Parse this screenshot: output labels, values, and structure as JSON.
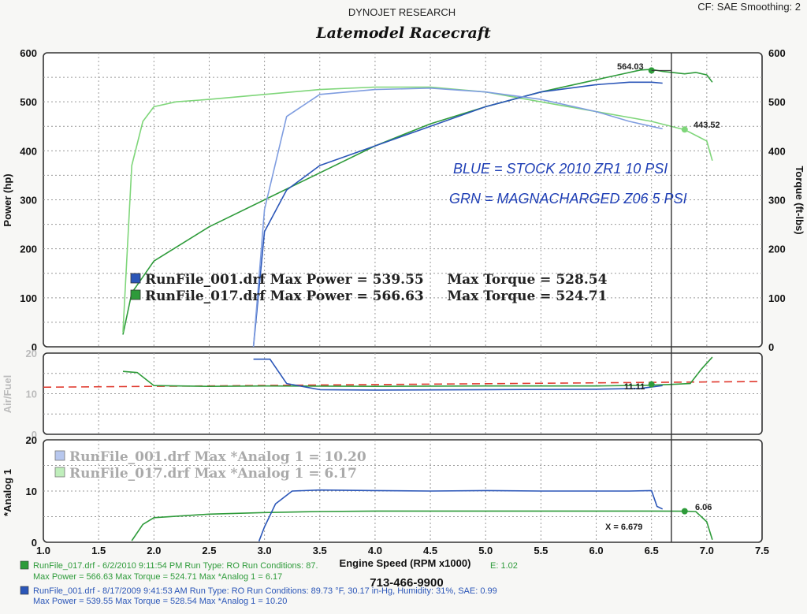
{
  "header": {
    "company": "DYNOJET RESEARCH",
    "shop": "Latemodel Racecraft",
    "settings": "CF: SAE  Smoothing: 2"
  },
  "colors": {
    "run_001": "#2b56b8",
    "run_017": "#2e9b3a",
    "run_017_light": "#7fd67a",
    "run_001_light": "#7f9de0",
    "afr_target": "#e03a2f"
  },
  "annotation": {
    "line1": "BLUE = STOCK 2010 ZR1  10 PSI",
    "line2": "GRN = MAGNACHARGED Z06  5 PSI"
  },
  "legend_power": [
    {
      "text": "RunFile_001.drf Max Power = 539.55     Max Torque = 528.54",
      "color": "#2b56b8"
    },
    {
      "text": "RunFile_017.drf Max Power = 566.63     Max Torque = 524.71",
      "color": "#2e9b3a"
    }
  ],
  "legend_analog": [
    {
      "text": "RunFile_001.drf Max *Analog 1 = 10.20",
      "color": "#7f9de0"
    },
    {
      "text": "RunFile_017.drf Max *Analog 1 = 6.17",
      "color": "#7fd67a"
    }
  ],
  "markers": {
    "power_peak": "564.03",
    "torque_at_cursor": "443.52",
    "afr_at_cursor": "11.11",
    "analog_at_cursor": "6.06",
    "cursor_readout": "X = 6.679"
  },
  "footer": {
    "run_017_line1": "RunFile_017.drf - 6/2/2010 9:11:54 PM  Run Type: RO  Run Conditions: 87.",
    "run_017_line1b": "E: 1.02",
    "run_017_line2": "Max Power = 566.63  Max Torque = 524.71  Max *Analog 1 = 6.17",
    "run_001_line1": "RunFile_001.drf - 8/17/2009 9:41:53 AM  Run Type: RO  Run Conditions: 89.73 °F, 30.17 in-Hg,  Humidity:  31%, SAE: 0.99",
    "run_001_line2": "Max Power = 539.55  Max Torque = 528.54  Max *Analog 1 = 10.20",
    "phone": "713-466-9900"
  },
  "chart_data": [
    {
      "type": "line",
      "panel": "power_torque",
      "xlabel": "Engine Speed (RPM x1000)",
      "ylabel": "Power (hp)",
      "y2label": "Torque (ft-lbs)",
      "xlim": [
        1.0,
        7.5
      ],
      "ylim": [
        0,
        600
      ],
      "y2lim": [
        0,
        600
      ],
      "x_ticks": [
        "1.0",
        "1.5",
        "2.0",
        "2.5",
        "3.0",
        "3.5",
        "4.0",
        "4.5",
        "5.0",
        "5.5",
        "6.0",
        "6.5",
        "7.0",
        "7.5"
      ],
      "y_ticks": [
        "0",
        "100",
        "200",
        "300",
        "400",
        "500",
        "600"
      ],
      "y2_ticks": [
        "0",
        "100",
        "200",
        "300",
        "400",
        "500",
        "600"
      ],
      "grid": true,
      "cursor_x": 6.68,
      "series": [
        {
          "name": "RunFile_017.drf Power",
          "color": "#2e9b3a",
          "x": [
            1.72,
            1.8,
            2.0,
            2.5,
            3.0,
            3.5,
            4.0,
            4.5,
            5.0,
            5.5,
            6.0,
            6.2,
            6.4,
            6.5,
            6.6,
            6.8,
            6.9,
            7.0,
            7.05
          ],
          "y": [
            25,
            110,
            175,
            245,
            300,
            355,
            410,
            455,
            490,
            520,
            545,
            555,
            565,
            566,
            562,
            557,
            560,
            555,
            540
          ]
        },
        {
          "name": "RunFile_017.drf Torque",
          "color": "#7fd67a",
          "x": [
            1.72,
            1.8,
            1.9,
            2.0,
            2.2,
            2.5,
            3.0,
            3.5,
            4.0,
            4.5,
            5.0,
            5.5,
            6.0,
            6.5,
            6.8,
            7.0,
            7.05
          ],
          "y": [
            30,
            370,
            460,
            490,
            500,
            505,
            515,
            525,
            530,
            530,
            520,
            500,
            480,
            460,
            443,
            420,
            380
          ]
        },
        {
          "name": "RunFile_001.drf Power",
          "color": "#2b56b8",
          "x": [
            2.9,
            3.0,
            3.2,
            3.5,
            4.0,
            4.5,
            5.0,
            5.5,
            6.0,
            6.3,
            6.5,
            6.6
          ],
          "y": [
            0,
            235,
            320,
            370,
            410,
            450,
            490,
            520,
            535,
            540,
            540,
            538
          ]
        },
        {
          "name": "RunFile_001.drf Torque",
          "color": "#7f9de0",
          "x": [
            2.9,
            3.0,
            3.2,
            3.5,
            4.0,
            4.5,
            5.0,
            5.5,
            6.0,
            6.3,
            6.5,
            6.6
          ],
          "y": [
            0,
            280,
            470,
            515,
            525,
            528,
            520,
            505,
            480,
            460,
            450,
            445
          ]
        }
      ]
    },
    {
      "type": "line",
      "panel": "air_fuel",
      "ylabel": "Air/Fuel",
      "xlim": [
        1.0,
        7.5
      ],
      "ylim": [
        0,
        20
      ],
      "y_ticks": [
        "0",
        "10",
        "20"
      ],
      "grid": true,
      "target_afr": {
        "x": [
          1.0,
          7.5
        ],
        "y": [
          11.6,
          13.0
        ],
        "color": "#e03a2f"
      },
      "series": [
        {
          "name": "RunFile_017.drf Air/Fuel",
          "color": "#2e9b3a",
          "x": [
            1.72,
            1.85,
            2.0,
            2.5,
            3.0,
            4.0,
            5.0,
            6.0,
            6.5,
            6.68,
            6.85,
            6.95,
            7.05
          ],
          "y": [
            15.5,
            15.2,
            12.0,
            11.8,
            11.9,
            11.8,
            11.9,
            11.9,
            12.1,
            12.3,
            12.5,
            16.0,
            19.0
          ]
        },
        {
          "name": "RunFile_001.drf Air/Fuel",
          "color": "#2b56b8",
          "x": [
            2.9,
            3.05,
            3.2,
            3.5,
            4.0,
            5.0,
            6.0,
            6.4,
            6.6
          ],
          "y": [
            18.5,
            18.5,
            12.5,
            11.0,
            10.9,
            11.0,
            11.1,
            11.3,
            12.0
          ]
        }
      ]
    },
    {
      "type": "line",
      "panel": "analog_1",
      "ylabel": "*Analog 1",
      "xlim": [
        1.0,
        7.5
      ],
      "ylim": [
        0,
        20
      ],
      "y_ticks": [
        "0",
        "10",
        "20"
      ],
      "grid": true,
      "series": [
        {
          "name": "RunFile_017.drf *Analog 1",
          "color": "#2e9b3a",
          "x": [
            1.8,
            1.9,
            2.0,
            2.5,
            3.0,
            3.5,
            4.0,
            4.5,
            5.0,
            5.5,
            6.0,
            6.5,
            6.8,
            6.9,
            7.0,
            7.05
          ],
          "y": [
            0.3,
            3.5,
            4.8,
            5.5,
            5.8,
            6.0,
            6.1,
            6.1,
            6.1,
            6.1,
            6.1,
            6.1,
            6.06,
            6.0,
            4.0,
            0.5
          ]
        },
        {
          "name": "RunFile_001.drf *Analog 1",
          "color": "#2b56b8",
          "x": [
            2.95,
            3.0,
            3.1,
            3.25,
            3.5,
            4.0,
            4.5,
            5.0,
            5.5,
            6.0,
            6.3,
            6.5,
            6.55,
            6.6
          ],
          "y": [
            0.2,
            3.0,
            7.5,
            10.0,
            10.2,
            10.1,
            10.0,
            10.1,
            10.0,
            10.0,
            10.0,
            10.1,
            7.0,
            6.5
          ]
        }
      ]
    }
  ]
}
